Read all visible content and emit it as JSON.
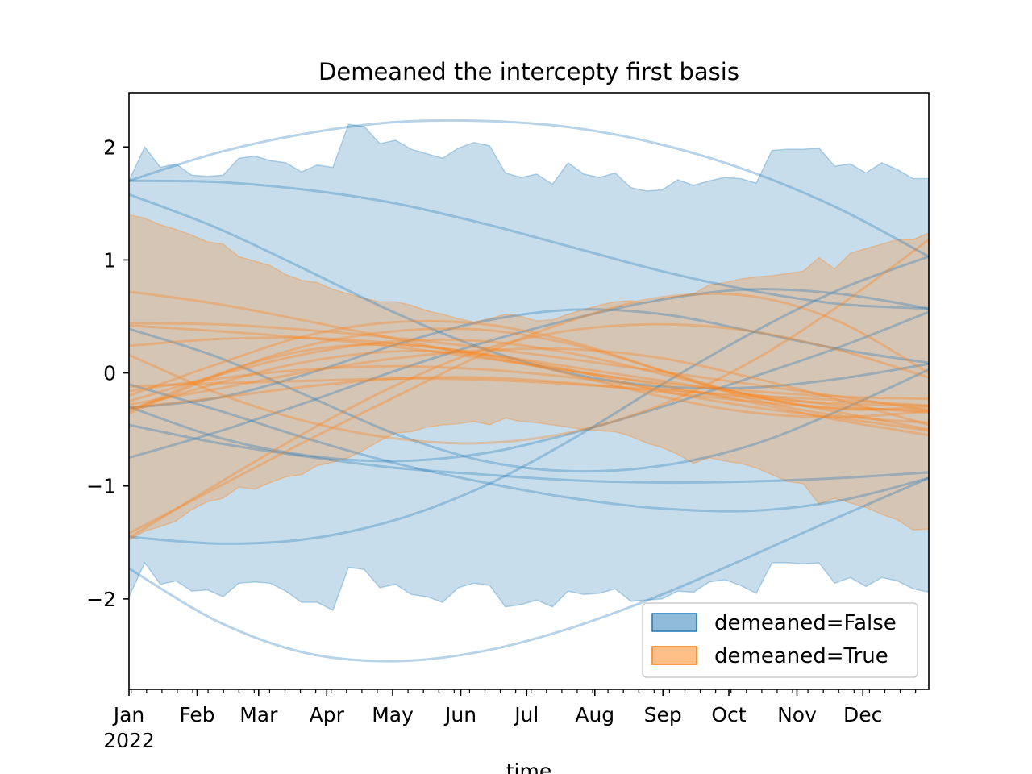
{
  "chart_data": {
    "type": "area",
    "title": "Demeaned the intercepty first basis",
    "xlabel": "time",
    "ylabel": "",
    "x_ticks": [
      "Jan",
      "Feb",
      "Mar",
      "Apr",
      "May",
      "Jun",
      "Jul",
      "Aug",
      "Sep",
      "Oct",
      "Nov",
      "Dec"
    ],
    "x_year_label": "2022",
    "x_range": [
      "2022-01-01",
      "2022-12-31"
    ],
    "y_ticks": [
      2,
      1,
      0,
      -1,
      -2
    ],
    "ylim": [
      -2.8,
      2.48
    ],
    "grid": false,
    "legend_position": "lower-right",
    "colors": {
      "demeaned_false": "#1f77b4",
      "demeaned_true": "#ff7f0e"
    },
    "series": [
      {
        "name": "demeaned=False",
        "hdi_upper": [
          1.7,
          2.0,
          1.82,
          1.85,
          1.75,
          1.74,
          1.75,
          1.9,
          1.92,
          1.88,
          1.86,
          1.78,
          1.84,
          1.82,
          2.2,
          2.18,
          2.03,
          2.06,
          1.98,
          1.94,
          1.9,
          1.99,
          2.04,
          2.01,
          1.77,
          1.73,
          1.76,
          1.67,
          1.86,
          1.76,
          1.73,
          1.77,
          1.64,
          1.61,
          1.62,
          1.71,
          1.66,
          1.7,
          1.73,
          1.72,
          1.68,
          1.97,
          1.98,
          1.98,
          1.99,
          1.83,
          1.85,
          1.77,
          1.86,
          1.8,
          1.72,
          1.72
        ],
        "hdi_lower": [
          -1.98,
          -1.68,
          -1.87,
          -1.84,
          -1.93,
          -1.92,
          -1.98,
          -1.86,
          -1.85,
          -1.86,
          -1.93,
          -2.03,
          -2.03,
          -2.1,
          -1.72,
          -1.74,
          -1.9,
          -1.87,
          -1.96,
          -1.98,
          -2.03,
          -1.9,
          -1.86,
          -1.88,
          -2.07,
          -2.05,
          -2.01,
          -2.07,
          -1.93,
          -1.96,
          -1.95,
          -1.91,
          -2.02,
          -2.01,
          -2.0,
          -1.93,
          -1.94,
          -1.85,
          -1.83,
          -1.88,
          -1.95,
          -1.68,
          -1.68,
          -1.69,
          -1.68,
          -1.86,
          -1.81,
          -1.89,
          -1.81,
          -1.84,
          -1.91,
          -1.94
        ],
        "draws": [
          [
            1.7,
            1.95,
            2.12,
            2.22,
            2.23,
            2.17,
            2.02,
            1.78,
            1.45,
            1.03
          ],
          [
            -1.73,
            -2.2,
            -2.48,
            -2.55,
            -2.46,
            -2.25,
            -1.96,
            -1.62,
            -1.27,
            -0.93
          ],
          [
            1.7,
            1.69,
            1.62,
            1.5,
            1.32,
            1.11,
            0.9,
            0.73,
            0.61,
            0.57
          ],
          [
            1.58,
            1.28,
            0.91,
            0.53,
            0.21,
            -0.01,
            -0.12,
            -0.13,
            -0.05,
            0.08
          ],
          [
            -1.45,
            -1.51,
            -1.47,
            -1.3,
            -1.0,
            -0.58,
            -0.1,
            0.35,
            0.74,
            1.03
          ],
          [
            0.39,
            0.14,
            -0.2,
            -0.54,
            -0.78,
            -0.87,
            -0.82,
            -0.64,
            -0.33,
            0.03
          ],
          [
            -0.1,
            -0.33,
            -0.58,
            -0.8,
            -0.97,
            -1.11,
            -1.2,
            -1.22,
            -1.13,
            -0.93
          ],
          [
            -0.3,
            -0.57,
            -0.73,
            -0.78,
            -0.71,
            -0.53,
            -0.3,
            -0.04,
            0.23,
            0.54
          ],
          [
            -0.46,
            -0.62,
            -0.74,
            -0.84,
            -0.9,
            -0.95,
            -0.97,
            -0.96,
            -0.93,
            -0.88
          ],
          [
            -0.75,
            -0.52,
            -0.26,
            0.02,
            0.27,
            0.48,
            0.65,
            0.74,
            0.7,
            0.57
          ],
          [
            -0.31,
            -0.22,
            -0.01,
            0.25,
            0.46,
            0.56,
            0.52,
            0.37,
            0.21,
            0.09
          ]
        ]
      },
      {
        "name": "demeaned=True",
        "hdi_upper": [
          1.4,
          1.37,
          1.31,
          1.27,
          1.22,
          1.16,
          1.14,
          1.03,
          0.99,
          0.95,
          0.87,
          0.82,
          0.8,
          0.74,
          0.7,
          0.66,
          0.63,
          0.63,
          0.6,
          0.55,
          0.52,
          0.48,
          0.45,
          0.48,
          0.52,
          0.5,
          0.46,
          0.47,
          0.52,
          0.56,
          0.6,
          0.63,
          0.64,
          0.62,
          0.66,
          0.68,
          0.7,
          0.78,
          0.8,
          0.83,
          0.85,
          0.86,
          0.88,
          0.9,
          1.02,
          0.92,
          1.06,
          1.1,
          1.14,
          1.18,
          1.18,
          1.24
        ],
        "hdi_lower": [
          -1.48,
          -1.4,
          -1.36,
          -1.31,
          -1.21,
          -1.14,
          -1.11,
          -1.01,
          -1.03,
          -0.97,
          -0.92,
          -0.9,
          -0.82,
          -0.79,
          -0.75,
          -0.68,
          -0.6,
          -0.53,
          -0.52,
          -0.48,
          -0.46,
          -0.45,
          -0.43,
          -0.46,
          -0.4,
          -0.43,
          -0.44,
          -0.46,
          -0.48,
          -0.5,
          -0.51,
          -0.52,
          -0.56,
          -0.62,
          -0.66,
          -0.72,
          -0.8,
          -0.75,
          -0.78,
          -0.8,
          -0.84,
          -0.9,
          -0.96,
          -0.98,
          -1.16,
          -1.11,
          -1.15,
          -1.19,
          -1.25,
          -1.3,
          -1.39,
          -1.38
        ],
        "draws": [
          [
            0.72,
            0.61,
            0.46,
            0.3,
            0.14,
            0.01,
            -0.09,
            -0.16,
            -0.21,
            -0.23
          ],
          [
            0.44,
            0.43,
            0.38,
            0.31,
            0.22,
            0.12,
            0.01,
            -0.1,
            -0.21,
            -0.33
          ],
          [
            0.42,
            0.37,
            0.31,
            0.23,
            0.13,
            0.02,
            -0.11,
            -0.26,
            -0.42,
            -0.55
          ],
          [
            0.24,
            0.3,
            0.31,
            0.26,
            0.17,
            0.05,
            -0.07,
            -0.19,
            -0.29,
            -0.35
          ],
          [
            0.16,
            -0.18,
            -0.43,
            -0.58,
            -0.62,
            -0.52,
            -0.28,
            0.1,
            0.6,
            1.18
          ],
          [
            -0.28,
            -0.14,
            0.01,
            0.13,
            0.2,
            0.21,
            0.13,
            -0.04,
            -0.24,
            -0.46
          ],
          [
            -0.25,
            -0.02,
            0.17,
            0.28,
            0.28,
            0.17,
            -0.01,
            -0.2,
            -0.35,
            -0.5
          ],
          [
            -0.2,
            0.08,
            0.33,
            0.45,
            0.43,
            0.27,
            0.02,
            -0.23,
            -0.38,
            -0.44
          ],
          [
            -0.12,
            -0.09,
            -0.07,
            -0.05,
            -0.06,
            -0.1,
            -0.15,
            -0.2,
            -0.24,
            -0.29
          ],
          [
            -0.36,
            -0.02,
            0.24,
            0.37,
            0.38,
            0.25,
            0.02,
            -0.2,
            -0.32,
            -0.3
          ],
          [
            -1.42,
            -1.01,
            -0.6,
            -0.21,
            0.17,
            0.47,
            0.67,
            0.68,
            0.45,
            0.0
          ],
          [
            -1.46,
            -0.98,
            -0.52,
            -0.11,
            0.21,
            0.38,
            0.43,
            0.37,
            0.2,
            -0.04
          ],
          [
            -0.31,
            -0.22,
            -0.12,
            -0.05,
            -0.04,
            -0.09,
            -0.17,
            -0.25,
            -0.31,
            -0.33
          ],
          [
            -0.16,
            -0.05,
            0.03,
            0.06,
            0.03,
            -0.04,
            -0.14,
            -0.22,
            -0.27,
            -0.29
          ],
          [
            -0.34,
            -0.01,
            0.2,
            0.25,
            0.16,
            -0.02,
            -0.21,
            -0.35,
            -0.39,
            -0.34
          ],
          [
            -0.32,
            -0.09,
            0.1,
            0.19,
            0.16,
            0.02,
            -0.16,
            -0.3,
            -0.4,
            -0.51
          ]
        ]
      }
    ]
  }
}
